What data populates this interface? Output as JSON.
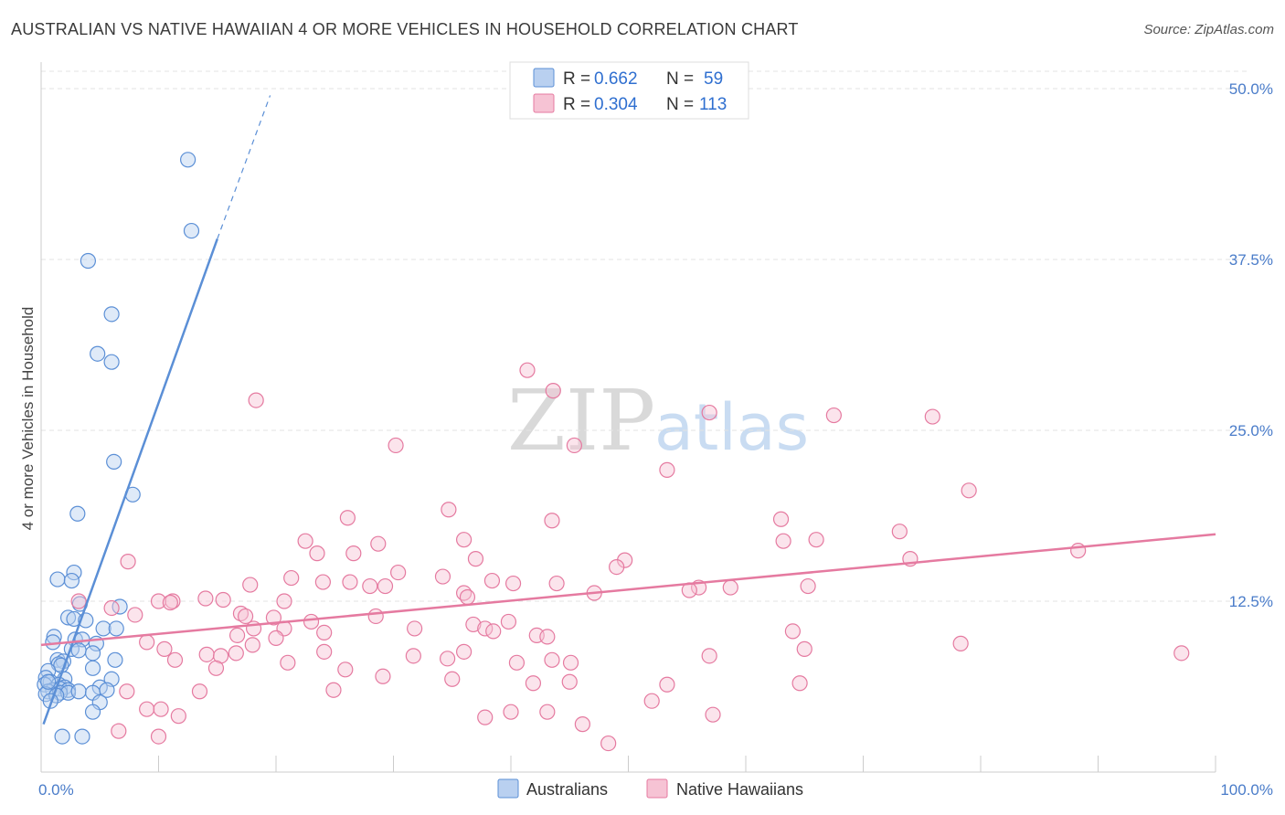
{
  "header": {
    "title": "AUSTRALIAN VS NATIVE HAWAIIAN 4 OR MORE VEHICLES IN HOUSEHOLD CORRELATION CHART",
    "source": "Source: ZipAtlas.com"
  },
  "watermark": {
    "zip": "ZIP",
    "atlas": "atlas"
  },
  "chart_data": {
    "type": "scatter",
    "xlabel": "",
    "ylabel": "4 or more Vehicles in Household",
    "xlim": [
      0,
      100
    ],
    "ylim": [
      0,
      50
    ],
    "x_tick_labels": [
      {
        "value": 0,
        "label": "0.0%"
      },
      {
        "value": 100,
        "label": "100.0%"
      }
    ],
    "y_tick_labels": [
      {
        "value": 12.5,
        "label": "12.5%"
      },
      {
        "value": 25,
        "label": "25.0%"
      },
      {
        "value": 37.5,
        "label": "37.5%"
      },
      {
        "value": 50,
        "label": "50.0%"
      }
    ],
    "grid": true,
    "legend_position": "top-center",
    "series": [
      {
        "name": "Australians",
        "color": "#5b8fd6",
        "fill": "#b9d0f0",
        "R": "0.662",
        "N": "59",
        "trend": {
          "x0": 0.2,
          "y0": 3.5,
          "x1": 15,
          "y1": 39
        },
        "trend_dashed": {
          "x0": 15,
          "y0": 39,
          "x1": 19.5,
          "y1": 49.5
        },
        "points": [
          [
            12.5,
            44.8
          ],
          [
            12.8,
            39.6
          ],
          [
            4.0,
            37.4
          ],
          [
            6.0,
            33.5
          ],
          [
            4.8,
            30.6
          ],
          [
            6.0,
            30.0
          ],
          [
            6.2,
            22.7
          ],
          [
            7.8,
            20.3
          ],
          [
            3.1,
            18.9
          ],
          [
            2.8,
            14.6
          ],
          [
            1.4,
            14.1
          ],
          [
            2.6,
            14.0
          ],
          [
            6.7,
            12.1
          ],
          [
            3.3,
            12.3
          ],
          [
            2.3,
            11.3
          ],
          [
            2.8,
            11.2
          ],
          [
            3.8,
            11.1
          ],
          [
            5.3,
            10.5
          ],
          [
            6.4,
            10.5
          ],
          [
            1.1,
            9.9
          ],
          [
            2.9,
            9.7
          ],
          [
            3.5,
            9.7
          ],
          [
            1.0,
            9.5
          ],
          [
            4.7,
            9.4
          ],
          [
            2.6,
            9.0
          ],
          [
            3.2,
            8.9
          ],
          [
            4.4,
            8.7
          ],
          [
            1.4,
            8.2
          ],
          [
            1.9,
            8.1
          ],
          [
            6.3,
            8.2
          ],
          [
            1.5,
            7.9
          ],
          [
            1.7,
            7.8
          ],
          [
            4.4,
            7.6
          ],
          [
            0.6,
            7.4
          ],
          [
            0.4,
            6.9
          ],
          [
            0.8,
            6.6
          ],
          [
            2.0,
            6.8
          ],
          [
            6.0,
            6.8
          ],
          [
            0.3,
            6.4
          ],
          [
            1.5,
            6.4
          ],
          [
            2.0,
            6.2
          ],
          [
            1.6,
            6.1
          ],
          [
            2.3,
            6.0
          ],
          [
            5.0,
            6.2
          ],
          [
            1.0,
            6.0
          ],
          [
            0.6,
            5.9
          ],
          [
            1.6,
            5.8
          ],
          [
            2.3,
            5.8
          ],
          [
            3.2,
            5.9
          ],
          [
            4.4,
            5.8
          ],
          [
            5.6,
            6.0
          ],
          [
            0.4,
            5.7
          ],
          [
            1.3,
            5.6
          ],
          [
            0.8,
            5.2
          ],
          [
            5.0,
            5.1
          ],
          [
            4.4,
            4.4
          ],
          [
            1.8,
            2.6
          ],
          [
            3.5,
            2.6
          ],
          [
            0.6,
            6.6
          ]
        ]
      },
      {
        "name": "Native Hawaiians",
        "color": "#e57aa0",
        "fill": "#f6c3d4",
        "R": "0.304",
        "N": "113",
        "trend": {
          "x0": 0,
          "y0": 9.3,
          "x1": 100,
          "y1": 17.4
        },
        "points": [
          [
            41.4,
            29.4
          ],
          [
            43.6,
            27.9
          ],
          [
            18.3,
            27.2
          ],
          [
            56.9,
            26.3
          ],
          [
            67.5,
            26.1
          ],
          [
            75.9,
            26.0
          ],
          [
            45.4,
            23.9
          ],
          [
            30.2,
            23.9
          ],
          [
            53.3,
            22.1
          ],
          [
            79.0,
            20.6
          ],
          [
            34.7,
            19.2
          ],
          [
            26.1,
            18.6
          ],
          [
            43.5,
            18.4
          ],
          [
            63.0,
            18.5
          ],
          [
            73.1,
            17.6
          ],
          [
            36.0,
            17.0
          ],
          [
            28.7,
            16.7
          ],
          [
            88.3,
            16.2
          ],
          [
            63.2,
            16.9
          ],
          [
            66.0,
            17.0
          ],
          [
            22.5,
            16.9
          ],
          [
            23.5,
            16.0
          ],
          [
            26.6,
            16.0
          ],
          [
            74.0,
            15.6
          ],
          [
            37.0,
            15.6
          ],
          [
            49.7,
            15.5
          ],
          [
            49.0,
            15.0
          ],
          [
            7.4,
            15.4
          ],
          [
            30.4,
            14.6
          ],
          [
            21.3,
            14.2
          ],
          [
            34.2,
            14.3
          ],
          [
            38.4,
            14.0
          ],
          [
            17.8,
            13.7
          ],
          [
            24.0,
            13.9
          ],
          [
            26.3,
            13.9
          ],
          [
            29.3,
            13.6
          ],
          [
            40.2,
            13.8
          ],
          [
            43.9,
            13.8
          ],
          [
            28.0,
            13.6
          ],
          [
            56.0,
            13.5
          ],
          [
            58.7,
            13.5
          ],
          [
            36.0,
            13.1
          ],
          [
            36.3,
            12.8
          ],
          [
            47.1,
            13.1
          ],
          [
            55.2,
            13.3
          ],
          [
            65.3,
            13.6
          ],
          [
            14.0,
            12.7
          ],
          [
            15.5,
            12.6
          ],
          [
            10.0,
            12.5
          ],
          [
            11.2,
            12.5
          ],
          [
            11.0,
            12.4
          ],
          [
            20.7,
            12.5
          ],
          [
            3.2,
            12.5
          ],
          [
            6.0,
            12.0
          ],
          [
            8.0,
            11.5
          ],
          [
            17.0,
            11.6
          ],
          [
            17.4,
            11.4
          ],
          [
            19.8,
            11.3
          ],
          [
            28.5,
            11.4
          ],
          [
            23.0,
            11.0
          ],
          [
            39.8,
            11.0
          ],
          [
            36.8,
            10.8
          ],
          [
            18.1,
            10.5
          ],
          [
            20.7,
            10.5
          ],
          [
            24.1,
            10.2
          ],
          [
            31.8,
            10.5
          ],
          [
            37.8,
            10.5
          ],
          [
            38.5,
            10.3
          ],
          [
            16.7,
            10.0
          ],
          [
            42.2,
            10.0
          ],
          [
            43.1,
            9.9
          ],
          [
            20.0,
            9.8
          ],
          [
            18.0,
            9.3
          ],
          [
            9.0,
            9.5
          ],
          [
            10.5,
            9.0
          ],
          [
            16.6,
            8.7
          ],
          [
            14.1,
            8.6
          ],
          [
            15.3,
            8.5
          ],
          [
            24.1,
            8.8
          ],
          [
            31.7,
            8.5
          ],
          [
            36.0,
            8.8
          ],
          [
            34.6,
            8.3
          ],
          [
            21.0,
            8.0
          ],
          [
            40.5,
            8.0
          ],
          [
            45.1,
            8.0
          ],
          [
            43.5,
            8.2
          ],
          [
            11.4,
            8.2
          ],
          [
            56.9,
            8.5
          ],
          [
            65.0,
            9.0
          ],
          [
            64.0,
            10.3
          ],
          [
            78.3,
            9.4
          ],
          [
            97.1,
            8.7
          ],
          [
            14.9,
            7.6
          ],
          [
            25.9,
            7.5
          ],
          [
            29.1,
            7.0
          ],
          [
            35.0,
            6.8
          ],
          [
            45.0,
            6.6
          ],
          [
            41.9,
            6.5
          ],
          [
            53.3,
            6.4
          ],
          [
            64.6,
            6.5
          ],
          [
            24.9,
            6.0
          ],
          [
            13.5,
            5.9
          ],
          [
            7.3,
            5.9
          ],
          [
            9.0,
            4.6
          ],
          [
            10.2,
            4.6
          ],
          [
            11.7,
            4.1
          ],
          [
            37.8,
            4.0
          ],
          [
            40.0,
            4.4
          ],
          [
            43.1,
            4.4
          ],
          [
            46.1,
            3.5
          ],
          [
            57.2,
            4.2
          ],
          [
            52.0,
            5.2
          ],
          [
            6.6,
            3.0
          ],
          [
            10.0,
            2.6
          ],
          [
            48.3,
            2.1
          ]
        ]
      }
    ]
  }
}
